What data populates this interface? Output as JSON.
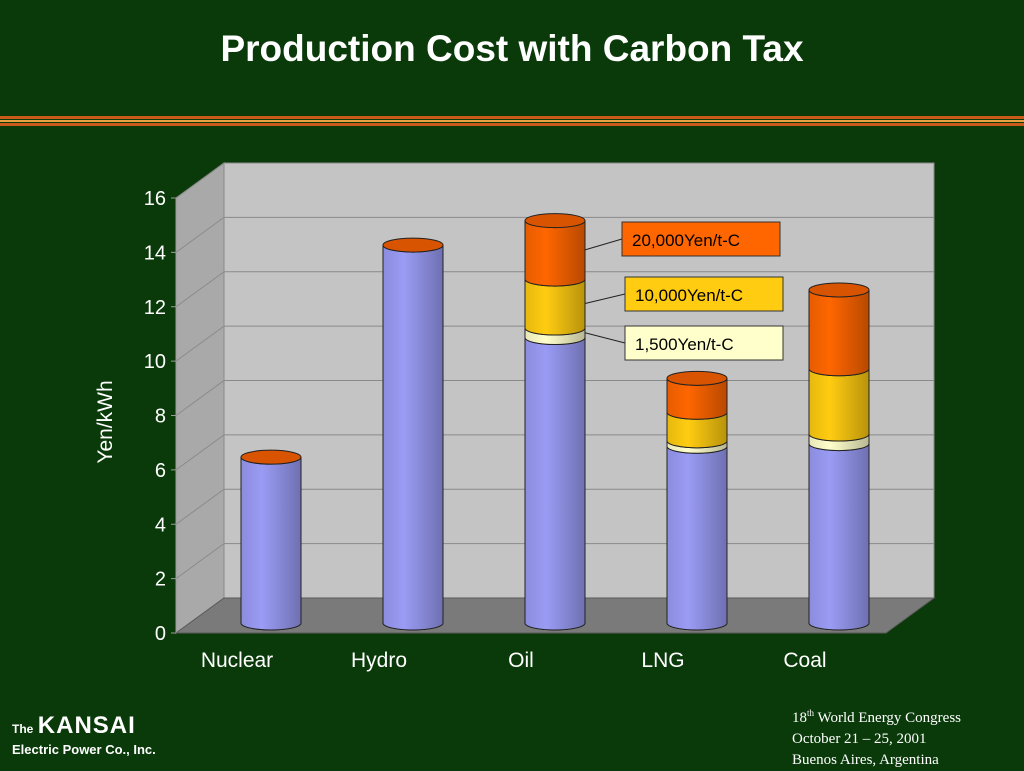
{
  "slide": {
    "title": "Production Cost with Carbon Tax"
  },
  "footer": {
    "logo_the": "The",
    "logo_name": "KANSAI",
    "logo_sub": "Electric Power Co., Inc.",
    "event_ordinal": "18",
    "event_ordinal_suffix": "th",
    "event_name": "World Energy Congress",
    "event_dates": "October 21 – 25, 2001",
    "event_place": "Buenos Aires, Argentina"
  },
  "chart_data": {
    "type": "bar",
    "stacked": true,
    "ylabel": "Yen/kWh",
    "ylim": [
      0,
      16
    ],
    "yticks": [
      0,
      2,
      4,
      6,
      8,
      10,
      12,
      14,
      16
    ],
    "categories": [
      "Nuclear",
      "Hydro",
      "Oil",
      "LNG",
      "Coal"
    ],
    "series": [
      {
        "name": "",
        "color": "#9a9cf5",
        "values": [
          6.1,
          13.9,
          10.5,
          6.5,
          6.6
        ]
      },
      {
        "name": "1,500Yen/t-C",
        "color": "#ffffcc",
        "values": [
          0,
          0,
          0.35,
          0.2,
          0.35
        ]
      },
      {
        "name": "10,000Yen/t-C",
        "color": "#ffcc11",
        "values": [
          0,
          0,
          1.8,
          1.05,
          2.4
        ]
      },
      {
        "name": "20,000Yen/t-C",
        "color": "#ff6600",
        "values": [
          0,
          0,
          2.15,
          1.25,
          2.9
        ]
      }
    ],
    "grid": true,
    "callouts": [
      {
        "series": 3,
        "category": 2,
        "label": "20,000Yen/t-C",
        "fill": "#ff6600"
      },
      {
        "series": 2,
        "category": 2,
        "label": "10,000Yen/t-C",
        "fill": "#ffcc11"
      },
      {
        "series": 1,
        "category": 2,
        "label": "1,500Yen/t-C",
        "fill": "#ffffcc"
      }
    ]
  }
}
